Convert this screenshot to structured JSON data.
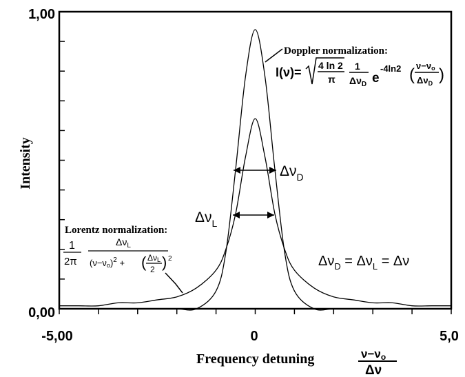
{
  "chart_data": {
    "type": "line",
    "xlabel": "Frequency detuning",
    "ylabel": "Intensity",
    "xlim": [
      -5.0,
      5.0
    ],
    "ylim": [
      0.0,
      1.0
    ],
    "x_tick_labels": [
      "-5,00",
      "0",
      "5,0"
    ],
    "y_tick_labels": [
      "0,00",
      "1,00"
    ],
    "x_tick_values": [
      -5.0,
      0.0,
      5.0
    ],
    "y_tick_values": [
      0.0,
      1.0
    ],
    "grid": false,
    "x": [
      -5.0,
      -4.5,
      -4.0,
      -3.5,
      -3.0,
      -2.5,
      -2.0,
      -1.5,
      -1.0,
      -0.75,
      -0.5,
      -0.25,
      0.0,
      0.25,
      0.5,
      0.75,
      1.0,
      1.5,
      2.0,
      2.5,
      3.0,
      3.5,
      4.0,
      4.5,
      5.0
    ],
    "series": [
      {
        "values": [
          0.0,
          0.0,
          0.0,
          0.0,
          0.0,
          0.0,
          0.0,
          0.0,
          0.06,
          0.19,
          0.47,
          0.78,
          0.94,
          0.78,
          0.47,
          0.19,
          0.06,
          0.0,
          0.0,
          0.0,
          0.0,
          0.0,
          0.0,
          0.0,
          0.0
        ]
      },
      {
        "values": [
          0.01,
          0.01,
          0.01,
          0.02,
          0.02,
          0.03,
          0.04,
          0.07,
          0.13,
          0.2,
          0.32,
          0.51,
          0.64,
          0.51,
          0.32,
          0.2,
          0.13,
          0.07,
          0.04,
          0.03,
          0.02,
          0.02,
          0.01,
          0.01,
          0.01
        ]
      }
    ],
    "annotations": {
      "doppler_title": "Doppler normalization:",
      "lorentz_title": "Lorentz normalization:",
      "width_label_doppler": "ΔνD",
      "width_label_lorentz": "ΔνL",
      "equality": "ΔνD = ΔνL = Δν",
      "doppler_formula": "I(ν) = √(4 ln 2 / π) · 1/ΔνD · e^(−4 ln2 ((ν−ν0)/ΔνD)²)",
      "lorentz_formula": "1/2π · ΔνL / ((ν−ν0)² + (ΔνL/2)²)",
      "x_fraction": "(ν−ν0)/Δν"
    },
    "colors": {
      "line": "#000000",
      "background": "#ffffff"
    }
  }
}
